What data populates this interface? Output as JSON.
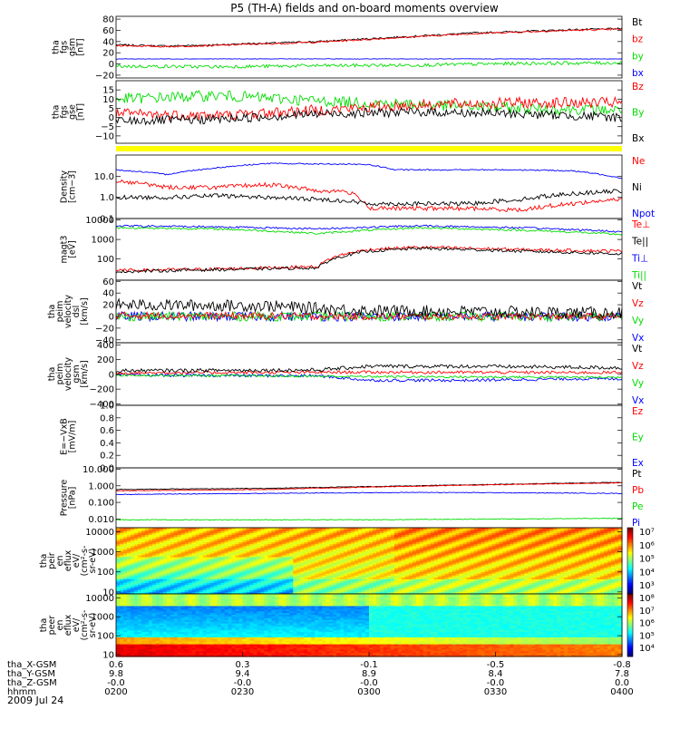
{
  "title": "P5 (TH-A) fields and on-board moments overview",
  "date": "2009 Jul 24",
  "orbit": {
    "labels": [
      "tha_X-GSM",
      "tha_Y-GSM",
      "tha_Z-GSM",
      "hhmm"
    ],
    "ticks": [
      {
        "x": "0.6",
        "y": "9.8",
        "z": "-0.0",
        "t": "0200"
      },
      {
        "x": "0.3",
        "y": "9.4",
        "z": "-0.0",
        "t": "0230"
      },
      {
        "x": "-0.1",
        "y": "8.9",
        "z": "-0.0",
        "t": "0300"
      },
      {
        "x": "-0.5",
        "y": "8.4",
        "z": "-0.0",
        "t": "0330"
      },
      {
        "x": "-0.8",
        "y": "7.8",
        "z": "0.0",
        "t": "0400"
      }
    ]
  },
  "colors": {
    "black": "#000000",
    "red": "#ff0000",
    "green": "#00dd00",
    "blue": "#0000ff",
    "yellow": "#ffff00"
  },
  "chart_data": [
    {
      "type": "line",
      "ylabel": [
        "tha",
        "fgs",
        "gsm",
        "[nT]"
      ],
      "ylim": [
        -25,
        85
      ],
      "ticks": [
        80,
        60,
        40,
        20,
        0,
        -20
      ],
      "tick_labels": [
        "80",
        "60",
        "40",
        "20",
        "0",
        "−20"
      ],
      "legend": [
        {
          "text": "Bt",
          "color": "#000000"
        },
        {
          "text": "bz",
          "color": "#ff0000"
        },
        {
          "text": "by",
          "color": "#00dd00"
        },
        {
          "text": "bx",
          "color": "#0000ff"
        }
      ],
      "series": [
        {
          "name": "Bt",
          "color": "#000000",
          "x": [
            0,
            0.1,
            0.2,
            0.25,
            0.3,
            0.4,
            0.5,
            0.6,
            0.7,
            0.8,
            0.9,
            1
          ],
          "y": [
            34,
            32,
            34,
            36,
            37,
            40,
            45,
            50,
            55,
            58,
            61,
            63
          ],
          "noise": 1.5
        },
        {
          "name": "bz",
          "color": "#ff0000",
          "x": [
            0,
            0.1,
            0.2,
            0.25,
            0.3,
            0.4,
            0.5,
            0.6,
            0.7,
            0.8,
            0.9,
            1
          ],
          "y": [
            33,
            31,
            33,
            35,
            36,
            39,
            44,
            49,
            54,
            57,
            60,
            62
          ],
          "noise": 1.5
        },
        {
          "name": "by",
          "color": "#00dd00",
          "x": [
            0,
            0.2,
            0.4,
            0.6,
            0.8,
            1
          ],
          "y": [
            -4,
            -5,
            -3,
            -2,
            1,
            2
          ],
          "noise": 3
        },
        {
          "name": "bx",
          "color": "#0000ff",
          "x": [
            0,
            0.3,
            0.6,
            1
          ],
          "y": [
            9,
            9,
            9,
            9
          ],
          "noise": 0.5
        }
      ]
    },
    {
      "type": "line",
      "ylabel": [
        "tha",
        "fgs",
        "gse",
        "[nT]"
      ],
      "ylim": [
        -14,
        20
      ],
      "ticks": [
        15,
        10,
        5,
        0,
        -5,
        -10
      ],
      "tick_labels": [
        "15",
        "10",
        "5",
        "0",
        "−5",
        "−10"
      ],
      "legend": [
        {
          "text": "Bz",
          "color": "#ff0000"
        },
        {
          "text": "By",
          "color": "#00dd00"
        },
        {
          "text": "Bx",
          "color": "#000000"
        }
      ],
      "status_bar_color": "#ffff00",
      "series": [
        {
          "name": "By",
          "color": "#00dd00",
          "x": [
            0,
            0.2,
            0.4,
            0.6,
            0.8,
            1
          ],
          "y": [
            10,
            12,
            9,
            7,
            5,
            4
          ],
          "noise": 3
        },
        {
          "name": "Bz",
          "color": "#ff0000",
          "x": [
            0,
            0.2,
            0.4,
            0.6,
            0.8,
            1
          ],
          "y": [
            2,
            1,
            4,
            7,
            8,
            8
          ],
          "noise": 3
        },
        {
          "name": "Bx",
          "color": "#000000",
          "x": [
            0,
            0.2,
            0.4,
            0.6,
            0.8,
            1
          ],
          "y": [
            -2,
            -1,
            2,
            3,
            2,
            0
          ],
          "noise": 2.5
        }
      ]
    },
    {
      "type": "line",
      "ylabel": [
        "Density",
        "[cm−3]"
      ],
      "log": true,
      "ylim": [
        0.1,
        100
      ],
      "ticks": [
        10,
        1,
        0.1
      ],
      "tick_labels": [
        "10.0",
        "1.0",
        "0.1"
      ],
      "legend": [
        {
          "text": "Ne",
          "color": "#ff0000"
        },
        {
          "text": "Ni",
          "color": "#000000"
        },
        {
          "text": "Npot",
          "color": "#0000ff"
        }
      ],
      "series": [
        {
          "name": "Npot",
          "color": "#0000ff",
          "x": [
            0,
            0.1,
            0.2,
            0.3,
            0.4,
            0.5,
            0.55,
            0.6,
            0.8,
            0.9,
            1
          ],
          "y": [
            20,
            12,
            25,
            40,
            38,
            35,
            20,
            20,
            20,
            18,
            8
          ],
          "noise": 0.03
        },
        {
          "name": "Ne",
          "color": "#ff0000",
          "x": [
            0,
            0.1,
            0.2,
            0.3,
            0.4,
            0.45,
            0.5,
            0.7,
            0.8,
            0.9,
            1
          ],
          "y": [
            6,
            3,
            3,
            4,
            2,
            2,
            0.3,
            0.3,
            0.25,
            0.5,
            0.8
          ],
          "noise": 0.1
        },
        {
          "name": "Ni",
          "color": "#000000",
          "x": [
            0,
            0.1,
            0.2,
            0.3,
            0.4,
            0.45,
            0.5,
            0.7,
            0.8,
            0.9,
            1
          ],
          "y": [
            1,
            1,
            1.2,
            1,
            0.8,
            0.7,
            0.5,
            0.5,
            0.8,
            1.5,
            2
          ],
          "noise": 0.1
        }
      ]
    },
    {
      "type": "line",
      "ylabel": [
        "magt3",
        "[eV]"
      ],
      "log": true,
      "ylim": [
        8,
        12000
      ],
      "ticks": [
        10000,
        1000,
        100
      ],
      "tick_labels": [
        "10000",
        "1000",
        "100"
      ],
      "legend": [
        {
          "text": "Te⊥",
          "color": "#ff0000"
        },
        {
          "text": "Te||",
          "color": "#000000"
        },
        {
          "text": "Ti⊥",
          "color": "#0000ff"
        },
        {
          "text": "Ti||",
          "color": "#00dd00"
        }
      ],
      "series": [
        {
          "name": "Ti⊥",
          "color": "#0000ff",
          "x": [
            0,
            0.2,
            0.4,
            0.6,
            0.8,
            1
          ],
          "y": [
            5000,
            4500,
            3500,
            5000,
            4000,
            2500
          ],
          "noise": 0.05
        },
        {
          "name": "Ti||",
          "color": "#00dd00",
          "x": [
            0,
            0.2,
            0.4,
            0.6,
            0.8,
            1
          ],
          "y": [
            4000,
            3500,
            2000,
            4000,
            3000,
            1800
          ],
          "noise": 0.05
        },
        {
          "name": "Te⊥",
          "color": "#ff0000",
          "x": [
            0,
            0.2,
            0.4,
            0.5,
            0.6,
            0.8,
            1
          ],
          "y": [
            25,
            30,
            40,
            300,
            400,
            300,
            250
          ],
          "noise": 0.08
        },
        {
          "name": "Te||",
          "color": "#000000",
          "x": [
            0,
            0.2,
            0.4,
            0.5,
            0.6,
            0.8,
            1
          ],
          "y": [
            22,
            28,
            35,
            250,
            350,
            250,
            180
          ],
          "noise": 0.08
        }
      ]
    },
    {
      "type": "line",
      "ylabel": [
        "tha",
        "peim",
        "velocity",
        "dsl",
        "[km/s]"
      ],
      "ylim": [
        -45,
        62
      ],
      "ticks": [
        60,
        40,
        20,
        0,
        -20,
        -40
      ],
      "tick_labels": [
        "60",
        "40",
        "20",
        "0",
        "−20",
        "−40"
      ],
      "legend": [
        {
          "text": "Vt",
          "color": "#000000"
        },
        {
          "text": "Vz",
          "color": "#ff0000"
        },
        {
          "text": "Vy",
          "color": "#00dd00"
        },
        {
          "text": "Vx",
          "color": "#0000ff"
        }
      ],
      "series": [
        {
          "name": "Vx",
          "color": "#0000ff",
          "x": [
            0,
            0.5,
            1
          ],
          "y": [
            0,
            0,
            0
          ],
          "noise": 8
        },
        {
          "name": "Vy",
          "color": "#00dd00",
          "x": [
            0,
            0.5,
            1
          ],
          "y": [
            0,
            0,
            0
          ],
          "noise": 8
        },
        {
          "name": "Vz",
          "color": "#ff0000",
          "x": [
            0,
            0.5,
            1
          ],
          "y": [
            2,
            0,
            0
          ],
          "noise": 6
        },
        {
          "name": "Vt",
          "color": "#000000",
          "x": [
            0,
            0.3,
            0.5,
            1
          ],
          "y": [
            20,
            18,
            10,
            6
          ],
          "noise": 10
        }
      ]
    },
    {
      "type": "line",
      "ylabel": [
        "tha",
        "peim",
        "velocity",
        "gsm",
        "[km/s]"
      ],
      "ylim": [
        -420,
        430
      ],
      "ticks": [
        400,
        200,
        0,
        -200,
        -400
      ],
      "tick_labels": [
        "400",
        "200",
        "0",
        "−200",
        "−400"
      ],
      "legend": [
        {
          "text": "Vt",
          "color": "#000000"
        },
        {
          "text": "Vz",
          "color": "#ff0000"
        },
        {
          "text": "Vy",
          "color": "#00dd00"
        },
        {
          "text": "Vx",
          "color": "#0000ff"
        }
      ],
      "series": [
        {
          "name": "Vx",
          "color": "#0000ff",
          "x": [
            0,
            0.4,
            0.5,
            0.7,
            0.9,
            1
          ],
          "y": [
            -10,
            -20,
            -80,
            -80,
            -60,
            -60
          ],
          "noise": 20
        },
        {
          "name": "Vy",
          "color": "#00dd00",
          "x": [
            0,
            0.5,
            1
          ],
          "y": [
            -10,
            -30,
            -40
          ],
          "noise": 15
        },
        {
          "name": "Vz",
          "color": "#ff0000",
          "x": [
            0,
            0.5,
            1
          ],
          "y": [
            20,
            30,
            25
          ],
          "noise": 20
        },
        {
          "name": "Vt",
          "color": "#000000",
          "x": [
            0,
            0.4,
            0.5,
            0.7,
            1
          ],
          "y": [
            50,
            60,
            110,
            110,
            90
          ],
          "noise": 25
        }
      ]
    },
    {
      "type": "line",
      "ylabel": [
        "E=−VxB",
        "[mV/m]"
      ],
      "ylim": [
        0,
        1
      ],
      "ticks": [
        1,
        0.8,
        0.6,
        0.4,
        0.2,
        0
      ],
      "tick_labels": [
        "1.0",
        "0.8",
        "0.6",
        "0.4",
        "0.2",
        "0.0"
      ],
      "legend": [
        {
          "text": "Ez",
          "color": "#ff0000"
        },
        {
          "text": "Ey",
          "color": "#00dd00"
        },
        {
          "text": "Ex",
          "color": "#0000ff"
        }
      ],
      "series": []
    },
    {
      "type": "line",
      "ylabel": [
        "Pressure",
        "[nPa]"
      ],
      "log": true,
      "ylim": [
        0.003,
        12
      ],
      "ticks": [
        10,
        1,
        0.1,
        0.01
      ],
      "tick_labels": [
        "10.000",
        "1.000",
        "0.100",
        "0.010"
      ],
      "legend": [
        {
          "text": "Pt",
          "color": "#000000"
        },
        {
          "text": "Pb",
          "color": "#ff0000"
        },
        {
          "text": "Pe",
          "color": "#00dd00"
        },
        {
          "text": "Pi",
          "color": "#0000ff"
        }
      ],
      "series": [
        {
          "name": "Pt",
          "color": "#000000",
          "x": [
            0,
            0.3,
            0.6,
            1
          ],
          "y": [
            0.6,
            0.7,
            1,
            1.6
          ],
          "noise": 0.02
        },
        {
          "name": "Pb",
          "color": "#ff0000",
          "x": [
            0,
            0.3,
            0.6,
            1
          ],
          "y": [
            0.5,
            0.6,
            0.95,
            1.5
          ],
          "noise": 0.02
        },
        {
          "name": "Pi",
          "color": "#0000ff",
          "x": [
            0,
            0.3,
            0.6,
            1
          ],
          "y": [
            0.3,
            0.35,
            0.4,
            0.35
          ],
          "noise": 0.02
        },
        {
          "name": "Pe",
          "color": "#00dd00",
          "x": [
            0,
            0.5,
            1
          ],
          "y": [
            0.009,
            0.009,
            0.011
          ],
          "noise": 0.02
        }
      ]
    },
    {
      "type": "heatmap",
      "ylabel": [
        "tha",
        "peir",
        "en",
        "eflux",
        "eV/",
        "(cm²-s-",
        "sr-eV)"
      ],
      "log": true,
      "ylim": [
        8,
        16000
      ],
      "ticks": [
        10000,
        1000,
        100,
        10
      ],
      "tick_labels": [
        "10000",
        "1000",
        "100",
        "10"
      ],
      "colorbar": {
        "min_exp": 2,
        "max_exp": 7,
        "labels": [
          "10⁷",
          "10⁶",
          "10⁵",
          "10⁴",
          "10³"
        ]
      }
    },
    {
      "type": "heatmap",
      "ylabel": [
        "tha",
        "peer",
        "en",
        "eflux",
        "eV/",
        "(cm²-s-",
        "sr-eV)"
      ],
      "log": true,
      "ylim": [
        8,
        16000
      ],
      "ticks": [
        10000,
        1000,
        100,
        10
      ],
      "tick_labels": [
        "10000",
        "1000",
        "100",
        "10"
      ],
      "colorbar": {
        "min_exp": 3.5,
        "max_exp": 8,
        "labels": [
          "10⁸",
          "10⁷",
          "10⁶",
          "10⁵",
          "10⁴"
        ]
      }
    }
  ]
}
